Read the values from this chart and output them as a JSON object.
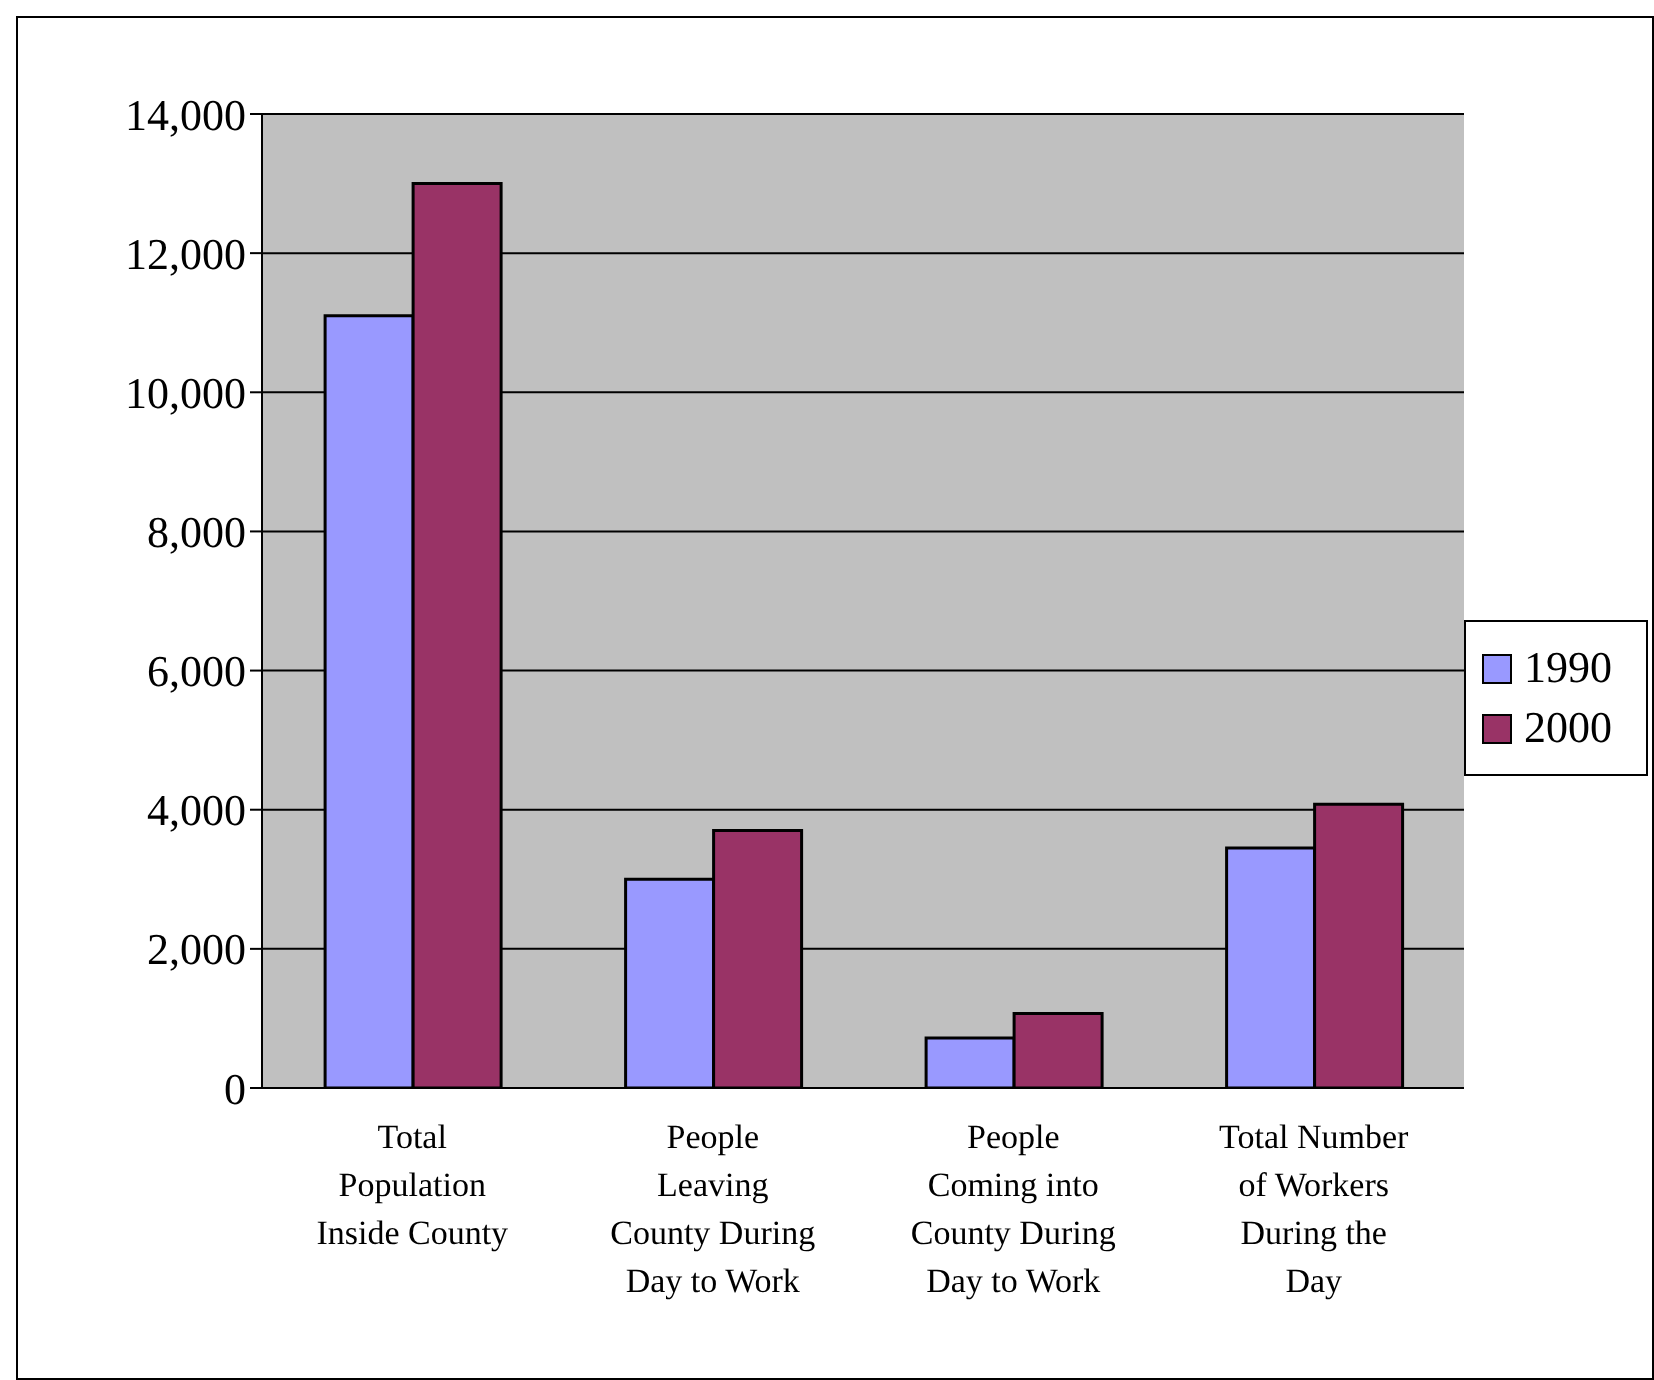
{
  "chart_data": {
    "type": "bar",
    "categories": [
      "Total Population Inside County",
      "People Leaving County During Day to Work",
      "People Coming into County During Day to Work",
      "Total Number of Workers During the Day"
    ],
    "series": [
      {
        "name": "1990",
        "color": "#9999ff",
        "values": [
          11100,
          3000,
          720,
          3450
        ]
      },
      {
        "name": "2000",
        "color": "#993366",
        "values": [
          13000,
          3700,
          1070,
          4080
        ]
      }
    ],
    "ylim": [
      0,
      14000
    ],
    "yticks": [
      0,
      {
        "value": 2000,
        "label": "2,000"
      },
      {
        "value": 4000,
        "label": "4,000"
      },
      {
        "value": 6000,
        "label": "6,000"
      },
      {
        "value": 8000,
        "label": "8,000"
      },
      {
        "value": 10000,
        "label": "10,000"
      },
      {
        "value": 12000,
        "label": "12,000"
      },
      {
        "value": 14000,
        "label": "14,000"
      }
    ],
    "grid": "y",
    "legend": "right"
  }
}
